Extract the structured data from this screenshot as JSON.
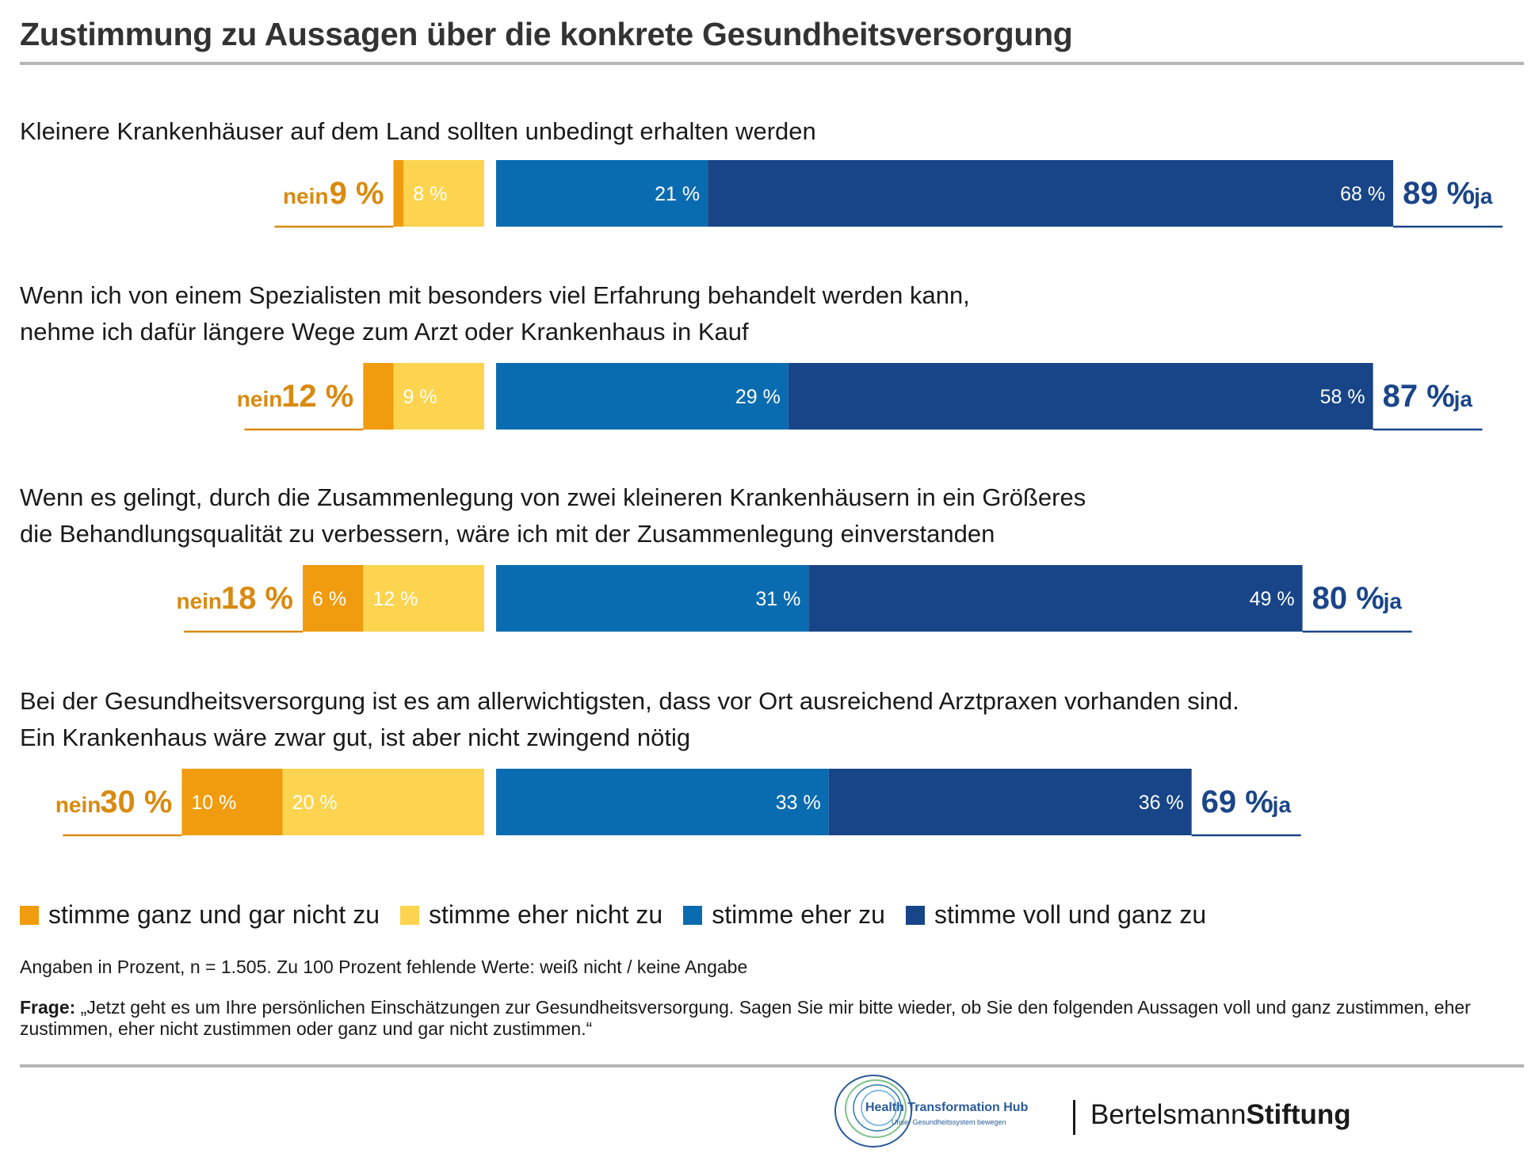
{
  "title": "Zustimmung zu Aussagen über die konkrete Gesundheitsversorgung",
  "colors": {
    "stimme_ganz_und_gar_nicht_zu": "#f09c0e",
    "stimme_eher_nicht_zu": "#fdd44f",
    "stimme_eher_zu": "#0a6cb0",
    "stimme_voll_und_ganz_zu": "#184587",
    "nein_text": "#d98a0f",
    "ja_text": "#1a4588",
    "rule": "#b5b5b5"
  },
  "chart_data": {
    "type": "bar",
    "orientation": "horizontal-diverging-stacked",
    "title": "Zustimmung zu Aussagen über die konkrete Gesundheitsversorgung",
    "unit": "%",
    "categories": [
      "Kleinere Krankenhäuser auf dem Land sollten unbedingt erhalten werden",
      "Wenn ich von einem Spezialisten mit besonders viel Erfahrung behandelt werden kann,\nnehme ich dafür längere Wege zum Arzt oder Krankenhaus in Kauf",
      "Wenn es gelingt, durch die Zusammenlegung von zwei kleineren Krankenhäusern in ein Größeres\ndie Behandlungsqualität zu verbessern, wäre ich mit der Zusammenlegung einverstanden",
      "Bei der Gesundheitsversorgung ist es am allerwichtigsten, dass vor Ort ausreichend Arztpraxen vorhanden sind.\nEin Krankenhaus wäre zwar gut, ist aber nicht zwingend nötig"
    ],
    "series": [
      {
        "name": "stimme ganz und gar nicht zu",
        "side": "negative",
        "values": [
          1,
          3,
          6,
          10
        ],
        "labels": [
          "",
          "",
          "6 %",
          "10 %"
        ]
      },
      {
        "name": "stimme eher nicht zu",
        "side": "negative",
        "values": [
          8,
          9,
          12,
          20
        ],
        "labels": [
          "8 %",
          "9 %",
          "12 %",
          "20 %"
        ]
      },
      {
        "name": "stimme eher zu",
        "side": "positive",
        "values": [
          21,
          29,
          31,
          33
        ],
        "labels": [
          "21 %",
          "29 %",
          "31 %",
          "33 %"
        ]
      },
      {
        "name": "stimme voll und ganz zu",
        "side": "positive",
        "values": [
          68,
          58,
          49,
          36
        ],
        "labels": [
          "68 %",
          "58 %",
          "49 %",
          "36 %"
        ]
      }
    ],
    "totals_nein": [
      "9 %",
      "12 %",
      "18 %",
      "30 %"
    ],
    "totals_ja": [
      "89 %",
      "87 %",
      "80 %",
      "69 %"
    ],
    "nein_word": "nein",
    "ja_word": "ja",
    "legend_position": "bottom",
    "grid": false
  },
  "legend": [
    {
      "label": "stimme ganz und gar nicht zu",
      "color": "#f09c0e"
    },
    {
      "label": "stimme eher nicht zu",
      "color": "#fdd44f"
    },
    {
      "label": "stimme eher zu",
      "color": "#0a6cb0"
    },
    {
      "label": "stimme voll und ganz zu",
      "color": "#184587"
    }
  ],
  "note": "Angaben in Prozent, n = 1.505. Zu 100 Prozent fehlende Werte: weiß nicht / keine Angabe",
  "frage": {
    "label": "Frage:",
    "text": " „Jetzt geht es um Ihre persönlichen Einschätzungen zur Gesundheitsversorgung. Sagen Sie mir bitte wieder, ob Sie den folgenden Aussagen voll und ganz zustimmen, eher zustimmen, eher nicht zustimmen oder ganz und gar nicht zustimmen.“"
  },
  "footer": {
    "hub_name": "Health Transformation Hub",
    "hub_tagline": "Unser Gesundheitssystem bewegen",
    "brand_regular": "Bertelsmann",
    "brand_bold": "Stiftung"
  }
}
